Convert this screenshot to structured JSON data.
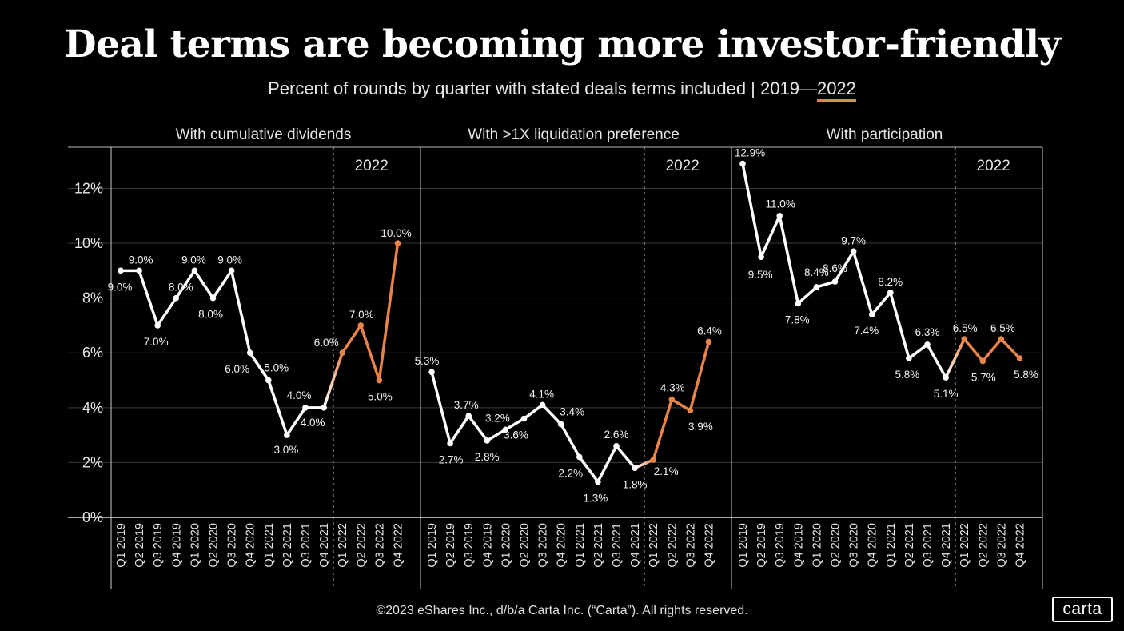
{
  "title": "Deal terms are becoming more investor-friendly",
  "subtitle": {
    "prefix": "Percent of rounds by quarter with stated deals terms included | 2019—",
    "highlight": "2022"
  },
  "footer": "©2023 eShares Inc., d/b/a Carta Inc. (“Carta”). All rights reserved.",
  "logo": "carta",
  "colors": {
    "background": "#000000",
    "line": "#ffffff",
    "highlight": "#e8844a",
    "grid": "#3a3a3a"
  },
  "chart_data": [
    {
      "type": "line",
      "title": "With cumulative dividends",
      "annotation": "2022",
      "categories": [
        "Q1 2019",
        "Q2 2019",
        "Q3 2019",
        "Q4 2019",
        "Q1 2020",
        "Q2 2020",
        "Q3 2020",
        "Q4 2020",
        "Q1 2021",
        "Q2 2021",
        "Q3 2021",
        "Q4 2021",
        "Q1 2022",
        "Q2 2022",
        "Q3 2022",
        "Q4 2022"
      ],
      "values": [
        9.0,
        9.0,
        7.0,
        8.0,
        9.0,
        8.0,
        9.0,
        6.0,
        5.0,
        3.0,
        4.0,
        4.0,
        6.0,
        7.0,
        5.0,
        10.0
      ],
      "labels": [
        "9.0%",
        "9.0%",
        "7.0%",
        "8.0%",
        "9.0%",
        "8.0%",
        "9.0%",
        "6.0%",
        "5.0%",
        "3.0%",
        "4.0%",
        "4.0%",
        "6.0%",
        "7.0%",
        "5.0%",
        "10.0%"
      ],
      "highlight_from": "Q1 2022",
      "yticks": [
        "0%",
        "2%",
        "4%",
        "6%",
        "8%",
        "10%",
        "12%"
      ],
      "ylim": [
        0,
        13.5
      ],
      "grid": true
    },
    {
      "type": "line",
      "title": "With >1X liquidation preference",
      "annotation": "2022",
      "categories": [
        "Q1 2019",
        "Q2 2019",
        "Q3 2019",
        "Q4 2019",
        "Q1 2020",
        "Q2 2020",
        "Q3 2020",
        "Q4 2020",
        "Q1 2021",
        "Q2 2021",
        "Q3 2021",
        "Q4 2021",
        "Q1 2022",
        "Q2 2022",
        "Q3 2022",
        "Q4 2022"
      ],
      "values": [
        5.3,
        2.7,
        3.7,
        2.8,
        3.2,
        3.6,
        4.1,
        3.4,
        2.2,
        1.3,
        2.6,
        1.8,
        2.1,
        4.3,
        3.9,
        6.4
      ],
      "labels": [
        "5.3%",
        "2.7%",
        "3.7%",
        "2.8%",
        "3.2%",
        "3.6%",
        "4.1%",
        "3.4%",
        "2.2%",
        "1.3%",
        "2.6%",
        "1.8%",
        "2.1%",
        "4.3%",
        "3.9%",
        "6.4%"
      ],
      "highlight_from": "Q1 2022",
      "ylim": [
        0,
        13.5
      ],
      "grid": true
    },
    {
      "type": "line",
      "title": "With participation",
      "annotation": "2022",
      "categories": [
        "Q1 2019",
        "Q2 2019",
        "Q3 2019",
        "Q4 2019",
        "Q1 2020",
        "Q2 2020",
        "Q3 2020",
        "Q4 2020",
        "Q1 2021",
        "Q2 2021",
        "Q3 2021",
        "Q4 2021",
        "Q1 2022",
        "Q2 2022",
        "Q3 2022",
        "Q4 2022"
      ],
      "values": [
        12.9,
        9.5,
        11.0,
        7.8,
        8.4,
        8.6,
        9.7,
        7.4,
        8.2,
        5.8,
        6.3,
        5.1,
        6.5,
        5.7,
        6.5,
        5.8
      ],
      "labels": [
        "12.9%",
        "9.5%",
        "11.0%",
        "7.8%",
        "8.4%",
        "8.6%",
        "9.7%",
        "7.4%",
        "8.2%",
        "5.8%",
        "6.3%",
        "5.1%",
        "6.5%",
        "5.7%",
        "6.5%",
        "5.8%"
      ],
      "highlight_from": "Q1 2022",
      "ylim": [
        0,
        13.5
      ],
      "grid": true
    }
  ]
}
